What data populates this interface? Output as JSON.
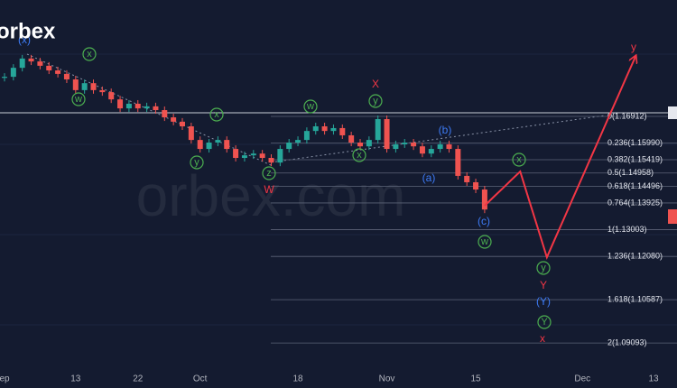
{
  "chart_data": {
    "type": "candlestick",
    "logo": "orbex",
    "watermark": "orbex.com",
    "categories": [
      "ep",
      null,
      null,
      null,
      null,
      null,
      null,
      null,
      "13",
      null,
      null,
      null,
      null,
      null,
      null,
      "22",
      null,
      null,
      null,
      null,
      null,
      null,
      "Oct",
      null,
      null,
      null,
      null,
      null,
      null,
      null,
      null,
      null,
      null,
      "18",
      null,
      null,
      null,
      null,
      null,
      null,
      null,
      null,
      null,
      "Nov",
      null,
      null,
      null,
      null,
      null,
      null,
      null,
      null,
      null,
      "15",
      null,
      null,
      null,
      null,
      null,
      null,
      null,
      null,
      null,
      null,
      null,
      "Dec",
      null,
      null,
      null,
      null,
      null,
      null,
      null,
      "13",
      null,
      null
    ],
    "ylim": [
      1.0754,
      1.2093
    ],
    "series": [
      {
        "name": "EURUSD",
        "color": "#26a69a",
        "down_color": "#ef5350",
        "values": [
          1.1828,
          1.1859,
          1.1891,
          1.1881,
          1.1866,
          1.185,
          1.1838,
          1.1819,
          1.1782,
          1.1806,
          1.1782,
          1.1775,
          1.175,
          1.1719,
          1.1735,
          1.1719,
          1.1726,
          1.1713,
          1.1688,
          1.1673,
          1.1657,
          1.161,
          1.1579,
          1.1601,
          1.161,
          1.1579,
          1.1548,
          1.1557,
          1.1563,
          1.1548,
          1.1532,
          1.1579,
          1.1601,
          1.161,
          1.1641,
          1.1657,
          1.1641,
          1.1651,
          1.1626,
          1.1601,
          1.1588,
          1.161,
          1.1682,
          1.1579,
          1.1595,
          1.1601,
          1.1588,
          1.1563,
          1.1579,
          1.1595,
          1.1579,
          1.1486,
          1.1464,
          1.1439,
          1.137,
          null,
          null,
          null,
          null,
          null,
          null,
          null,
          null,
          null,
          null,
          null,
          null,
          null,
          null,
          null,
          null,
          null,
          null,
          null,
          null,
          null
        ]
      },
      {
        "name": "Projection",
        "color": "#f23645",
        "values": [
          null,
          null,
          null,
          null,
          null,
          null,
          null,
          null,
          null,
          null,
          null,
          null,
          null,
          null,
          null,
          null,
          null,
          null,
          null,
          null,
          null,
          null,
          null,
          null,
          null,
          null,
          null,
          null,
          null,
          null,
          null,
          null,
          null,
          null,
          null,
          null,
          null,
          null,
          null,
          null,
          null,
          null,
          null,
          null,
          null,
          null,
          null,
          null,
          null,
          null,
          null,
          null,
          null,
          null,
          1.1383,
          1.1413,
          1.1442,
          1.1472,
          1.1501,
          1.1402,
          1.1304,
          1.1205,
          1.1275,
          1.1344,
          1.1414,
          1.1483,
          1.1553,
          1.1622,
          1.1692,
          1.1761,
          1.1831,
          1.19,
          null,
          null,
          null,
          null
        ]
      }
    ],
    "levels": [
      {
        "value": 1.16912,
        "label": "0(1.16912)"
      },
      {
        "value": 1.1599,
        "label": "0.236(1.15990)"
      },
      {
        "value": 1.15419,
        "label": "0.382(1.15419)"
      },
      {
        "value": 1.14958,
        "label": "0.5(1.14958)"
      },
      {
        "value": 1.14496,
        "label": "0.618(1.14496)"
      },
      {
        "value": 1.13925,
        "label": "0.764(1.13925)"
      },
      {
        "value": 1.13003,
        "label": "1(1.13003)"
      },
      {
        "value": 1.1208,
        "label": "1.236(1.12080)"
      },
      {
        "value": 1.10587,
        "label": "1.618(1.10587)"
      },
      {
        "value": 1.09093,
        "label": "2(1.09093)"
      }
    ],
    "annotations": [
      {
        "text": "(x)",
        "color": "#3d7bf5",
        "circle": false
      },
      {
        "text": "x",
        "color": "#4caf50",
        "circle": true
      },
      {
        "text": "w",
        "color": "#4caf50",
        "circle": true
      },
      {
        "text": "x",
        "color": "#4caf50",
        "circle": true
      },
      {
        "text": "y",
        "color": "#4caf50",
        "circle": true
      },
      {
        "text": "z",
        "color": "#4caf50",
        "circle": true
      },
      {
        "text": "W",
        "color": "#f23645",
        "circle": false
      },
      {
        "text": "w",
        "color": "#4caf50",
        "circle": true
      },
      {
        "text": "X",
        "color": "#f23645",
        "circle": false
      },
      {
        "text": "y",
        "color": "#4caf50",
        "circle": true
      },
      {
        "text": "x",
        "color": "#4caf50",
        "circle": true
      },
      {
        "text": "(b)",
        "color": "#3d7bf5",
        "circle": false
      },
      {
        "text": "(a)",
        "color": "#3d7bf5",
        "circle": false
      },
      {
        "text": "x",
        "color": "#4caf50",
        "circle": true
      },
      {
        "text": "(c)",
        "color": "#3d7bf5",
        "circle": false
      },
      {
        "text": "w",
        "color": "#4caf50",
        "circle": true
      },
      {
        "text": "y",
        "color": "#4caf50",
        "circle": true
      },
      {
        "text": "Y",
        "color": "#f23645",
        "circle": false
      },
      {
        "text": "(Y)",
        "color": "#3d7bf5",
        "circle": false
      },
      {
        "text": "Y",
        "color": "#4caf50",
        "circle": true
      },
      {
        "text": "x",
        "color": "#f23645",
        "circle": false
      },
      {
        "text": "y",
        "color": "#f23645",
        "circle": false
      }
    ]
  }
}
